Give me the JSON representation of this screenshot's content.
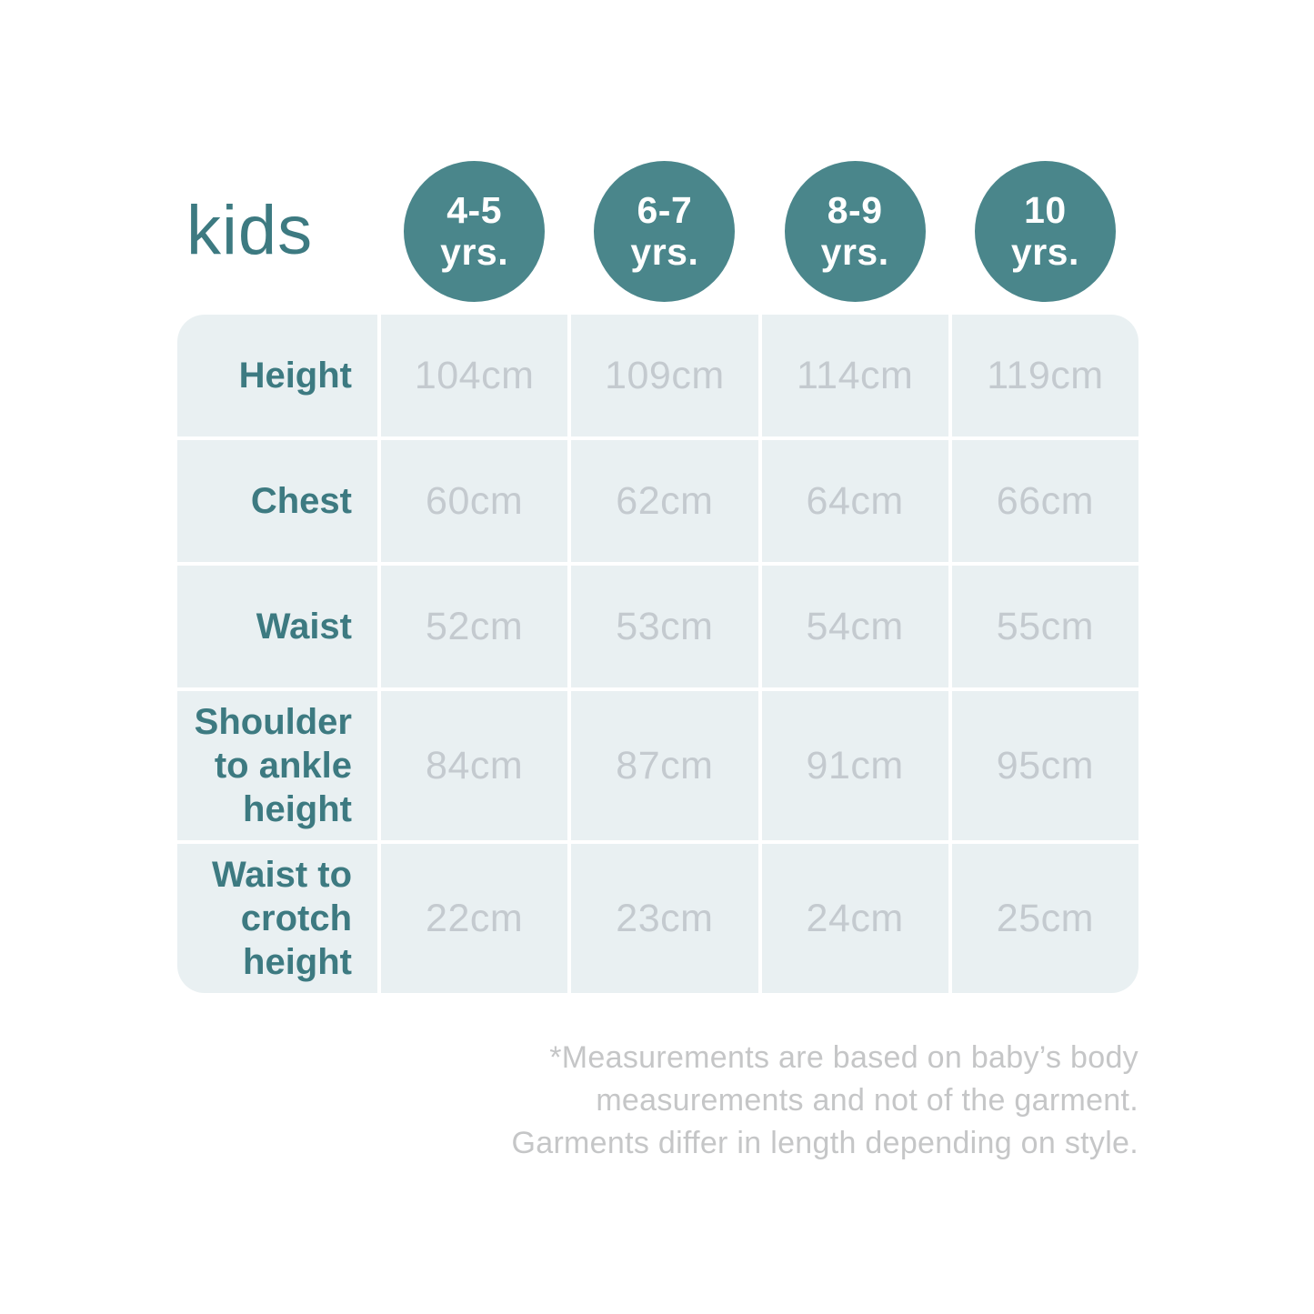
{
  "chart_data": {
    "type": "table",
    "title": "kids",
    "columns": [
      {
        "range": "4-5",
        "unit": "yrs."
      },
      {
        "range": "6-7",
        "unit": "yrs."
      },
      {
        "range": "8-9",
        "unit": "yrs."
      },
      {
        "range": "10",
        "unit": "yrs."
      }
    ],
    "rows": [
      {
        "label": "Height",
        "label_lines": [
          "Height"
        ],
        "values": [
          "104cm",
          "109cm",
          "114cm",
          "119cm"
        ]
      },
      {
        "label": "Chest",
        "label_lines": [
          "Chest"
        ],
        "values": [
          "60cm",
          "62cm",
          "64cm",
          "66cm"
        ]
      },
      {
        "label": "Waist",
        "label_lines": [
          "Waist"
        ],
        "values": [
          "52cm",
          "53cm",
          "54cm",
          "55cm"
        ]
      },
      {
        "label": "Shoulder to ankle height",
        "label_lines": [
          "Shoulder",
          "to ankle",
          "height"
        ],
        "values": [
          "84cm",
          "87cm",
          "91cm",
          "95cm"
        ]
      },
      {
        "label": "Waist to crotch height",
        "label_lines": [
          "Waist to",
          "crotch",
          "height"
        ],
        "values": [
          "22cm",
          "23cm",
          "24cm",
          "25cm"
        ]
      }
    ],
    "footnote_lines": [
      "*Measurements are based on baby’s body",
      "measurements and not of the garment.",
      "Garments differ in length depending on style."
    ]
  },
  "colors": {
    "accent": "#4A868B",
    "label": "#3D7A81",
    "cell_bg": "#E9F0F2",
    "value": "#C4CACF",
    "note": "#C5C6C7",
    "background": "#FFFFFF"
  }
}
